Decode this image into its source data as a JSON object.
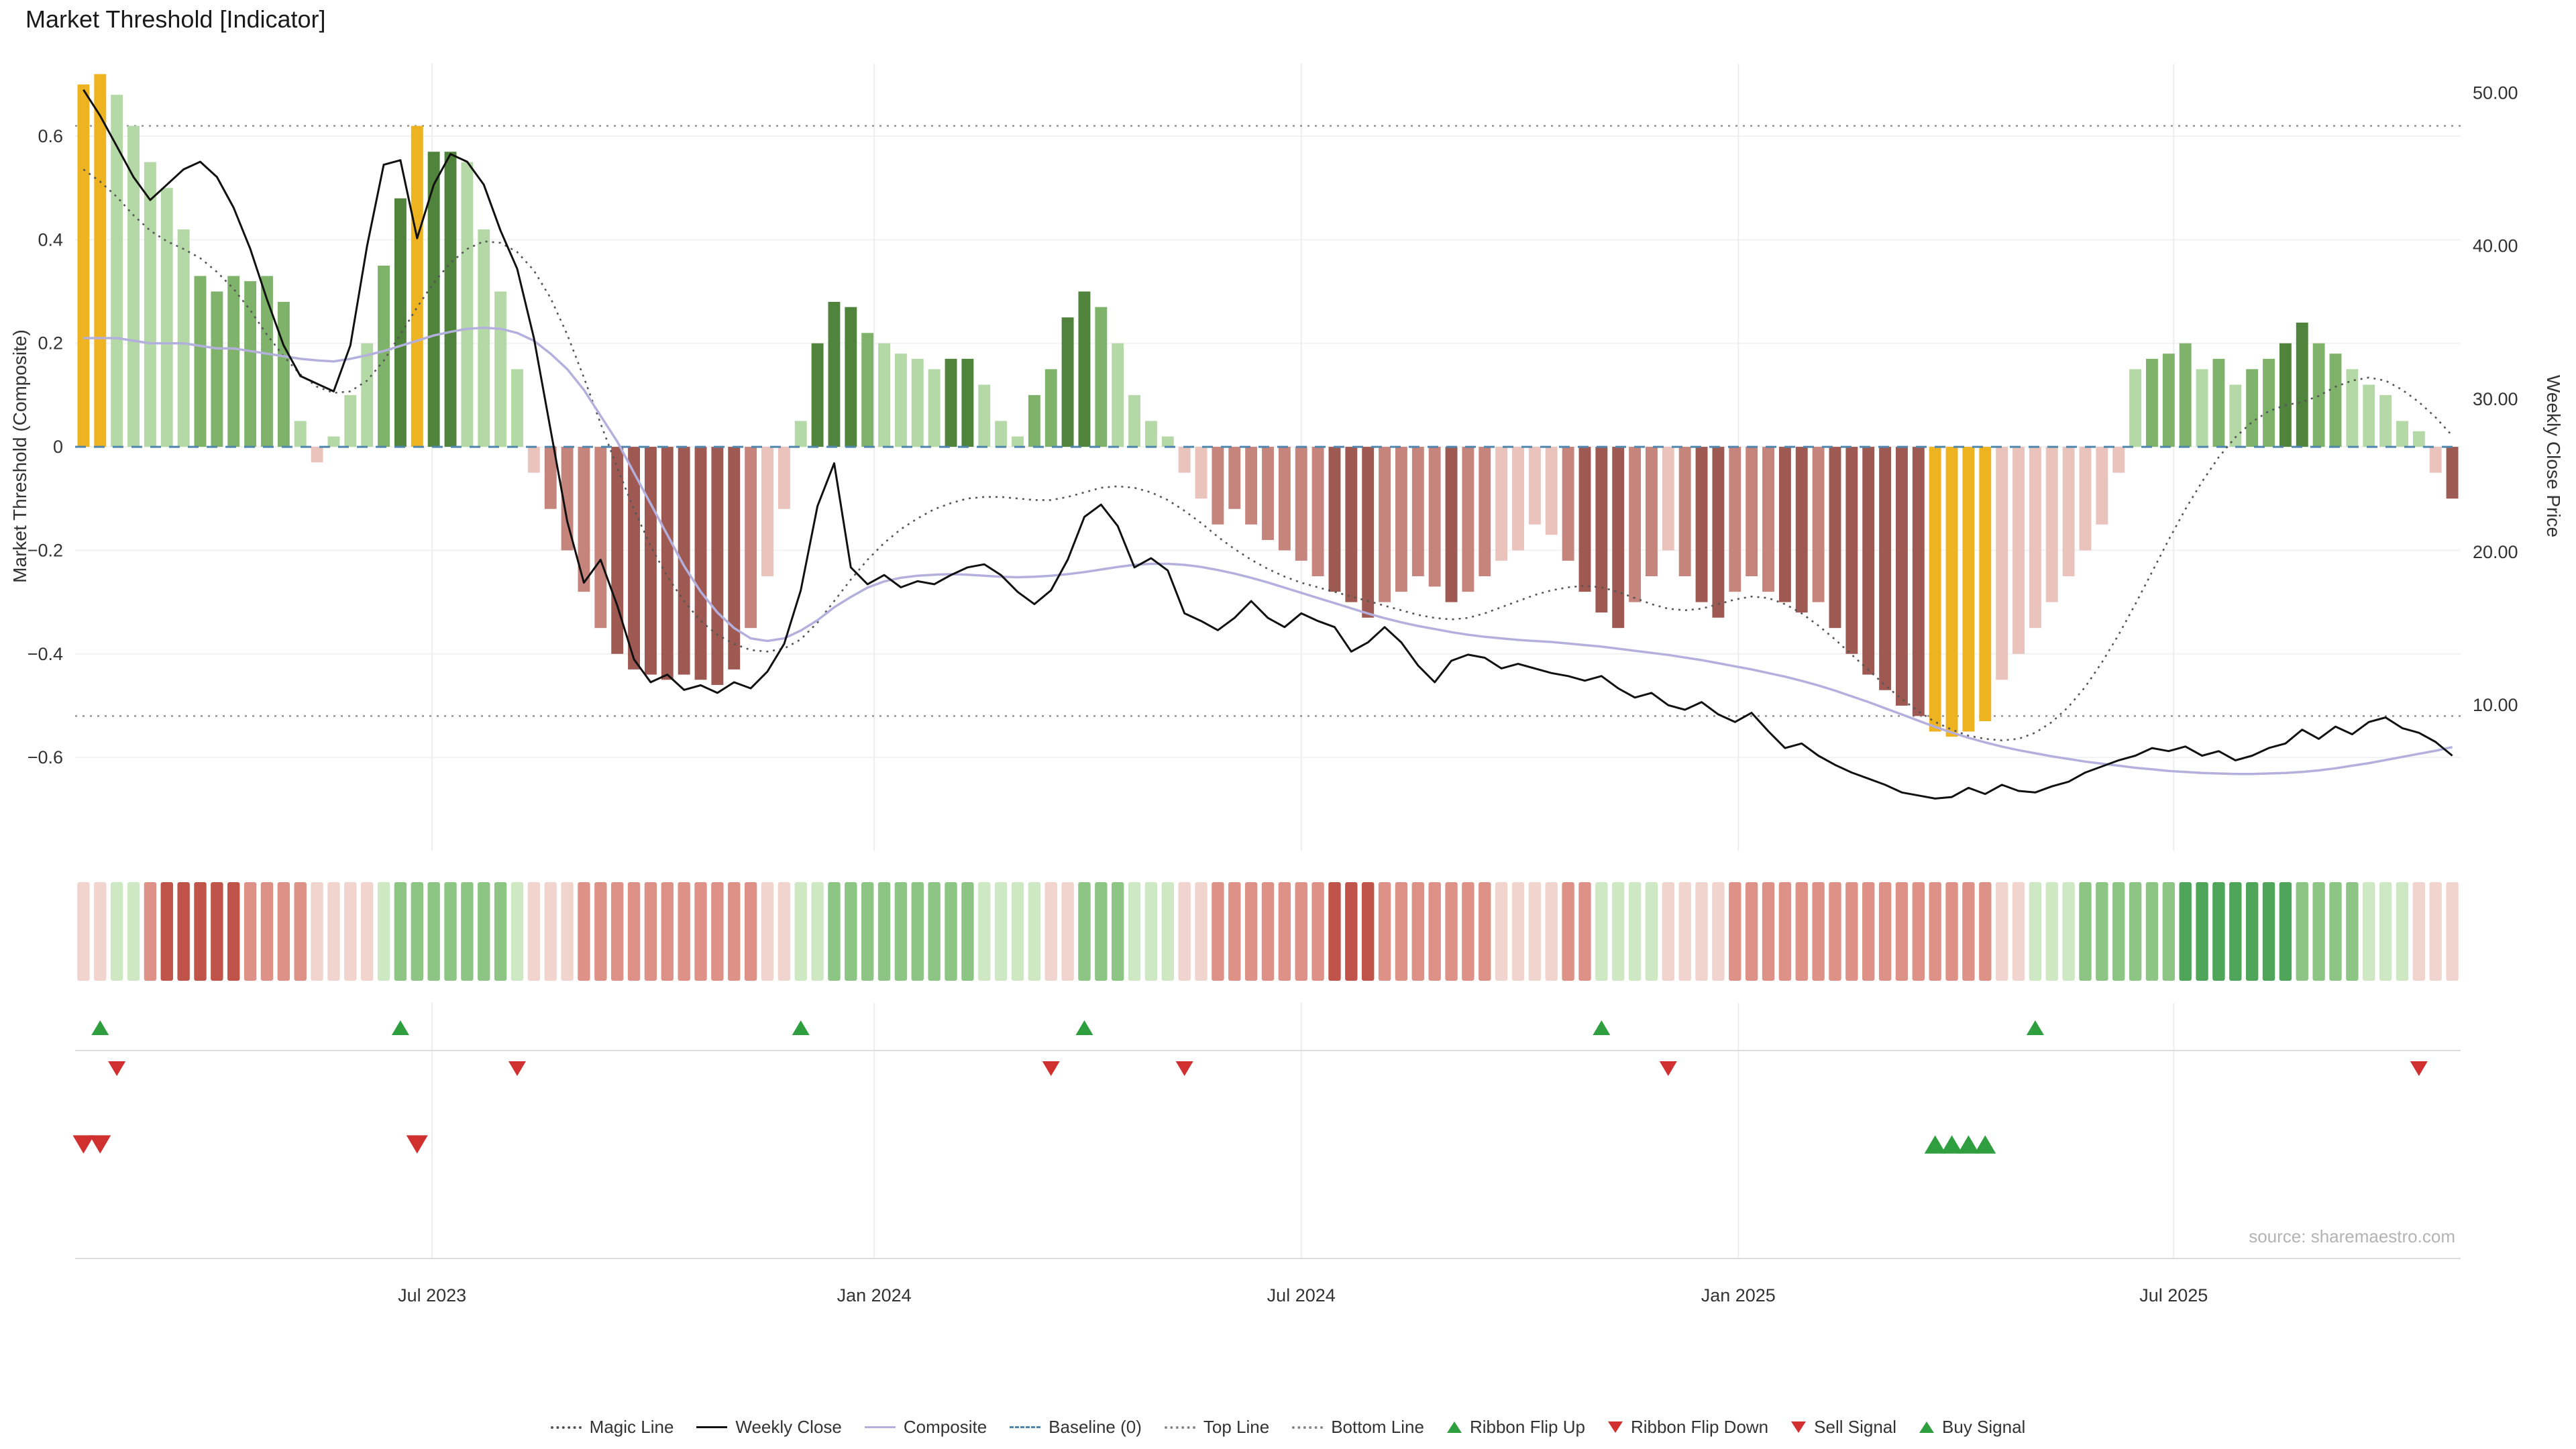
{
  "title": "Market Threshold [Indicator]",
  "source": "source: sharemaestro.com",
  "axes": {
    "left_label": "Market Threshold (Composite)",
    "right_label": "Weekly Close Price",
    "left_ticks": [
      "0.6",
      "0.4",
      "0.2",
      "0",
      "−0.2",
      "−0.4",
      "−0.6"
    ],
    "left_tick_values": [
      0.6,
      0.4,
      0.2,
      0,
      -0.2,
      -0.4,
      -0.6
    ],
    "right_ticks": [
      "50.00",
      "40.00",
      "30.00",
      "20.00",
      "10.00"
    ],
    "right_tick_values": [
      50,
      40,
      30,
      20,
      10
    ]
  },
  "colors": {
    "bar": {
      "g1": "#b5d9a6",
      "g2": "#7fb36b",
      "g3": "#50833c",
      "y": "#eeb321",
      "r1": "#eac3bd",
      "r2": "#c5857d",
      "r3": "#9e5a52"
    },
    "ribbon": {
      "g1": "#cfe8c4",
      "g2": "#8cc584",
      "g3": "#4fa55a",
      "r1": "#f2d4cf",
      "r2": "#de9287",
      "r3": "#c0544a"
    },
    "lines": {
      "weekly_close": "#111111",
      "composite": "#b4b0dd",
      "magic": "#555555",
      "baseline": "#4f86ad",
      "bounds": "#888888"
    },
    "signals": {
      "up": "#2e9e3e",
      "down": "#d03030"
    }
  },
  "chart_data": {
    "type": "bar+line",
    "title": "Market Threshold [Indicator]",
    "weeks": 143,
    "left_ylim": [
      -0.78,
      0.74
    ],
    "right_ylim": [
      0.5,
      51.9
    ],
    "top_line": 0.62,
    "bottom_line": -0.52,
    "baseline": 0,
    "x_ticks": [
      {
        "label": "Jul 2023",
        "week": 20.9
      },
      {
        "label": "Jan 2024",
        "week": 47.4
      },
      {
        "label": "Jul 2024",
        "week": 73.0
      },
      {
        "label": "Jan 2025",
        "week": 99.2
      },
      {
        "label": "Jul 2025",
        "week": 125.3
      }
    ],
    "bars": {
      "values": [
        0.7,
        0.72,
        0.68,
        0.62,
        0.55,
        0.5,
        0.42,
        0.33,
        0.3,
        0.33,
        0.32,
        0.33,
        0.28,
        0.05,
        -0.03,
        0.02,
        0.1,
        0.2,
        0.35,
        0.48,
        0.62,
        0.57,
        0.57,
        0.55,
        0.42,
        0.3,
        0.15,
        -0.05,
        -0.12,
        -0.2,
        -0.28,
        -0.35,
        -0.4,
        -0.43,
        -0.44,
        -0.45,
        -0.44,
        -0.45,
        -0.46,
        -0.43,
        -0.35,
        -0.25,
        -0.12,
        0.05,
        0.2,
        0.28,
        0.27,
        0.22,
        0.2,
        0.18,
        0.17,
        0.15,
        0.17,
        0.17,
        0.12,
        0.05,
        0.02,
        0.1,
        0.15,
        0.25,
        0.3,
        0.27,
        0.2,
        0.1,
        0.05,
        0.02,
        -0.05,
        -0.1,
        -0.15,
        -0.12,
        -0.15,
        -0.18,
        -0.2,
        -0.22,
        -0.25,
        -0.28,
        -0.3,
        -0.33,
        -0.3,
        -0.28,
        -0.25,
        -0.27,
        -0.3,
        -0.28,
        -0.25,
        -0.22,
        -0.2,
        -0.15,
        -0.17,
        -0.22,
        -0.28,
        -0.32,
        -0.35,
        -0.3,
        -0.25,
        -0.2,
        -0.25,
        -0.3,
        -0.33,
        -0.28,
        -0.25,
        -0.28,
        -0.3,
        -0.32,
        -0.3,
        -0.35,
        -0.4,
        -0.44,
        -0.47,
        -0.5,
        -0.52,
        -0.55,
        -0.56,
        -0.55,
        -0.53,
        -0.45,
        -0.4,
        -0.35,
        -0.3,
        -0.25,
        -0.2,
        -0.15,
        -0.05,
        0.15,
        0.17,
        0.18,
        0.2,
        0.15,
        0.17,
        0.12,
        0.15,
        0.17,
        0.2,
        0.24,
        0.2,
        0.18,
        0.15,
        0.12,
        0.1,
        0.05,
        0.03,
        -0.05,
        -0.1
      ],
      "colors": [
        "y",
        "y",
        "g1",
        "g1",
        "g1",
        "g1",
        "g1",
        "g2",
        "g2",
        "g2",
        "g2",
        "g2",
        "g2",
        "g1",
        "r1",
        "g1",
        "g1",
        "g1",
        "g2",
        "g3",
        "y",
        "g3",
        "g3",
        "g1",
        "g1",
        "g1",
        "g1",
        "r1",
        "r2",
        "r2",
        "r2",
        "r2",
        "r3",
        "r3",
        "r3",
        "r3",
        "r3",
        "r3",
        "r3",
        "r3",
        "r2",
        "r1",
        "r1",
        "g1",
        "g3",
        "g3",
        "g3",
        "g2",
        "g1",
        "g1",
        "g1",
        "g1",
        "g3",
        "g3",
        "g1",
        "g1",
        "g1",
        "g2",
        "g2",
        "g3",
        "g3",
        "g2",
        "g1",
        "g1",
        "g1",
        "g1",
        "r1",
        "r1",
        "r2",
        "r2",
        "r2",
        "r2",
        "r2",
        "r2",
        "r2",
        "r3",
        "r3",
        "r3",
        "r2",
        "r2",
        "r2",
        "r2",
        "r3",
        "r2",
        "r2",
        "r1",
        "r1",
        "r1",
        "r1",
        "r2",
        "r3",
        "r3",
        "r3",
        "r2",
        "r2",
        "r1",
        "r2",
        "r3",
        "r3",
        "r2",
        "r2",
        "r2",
        "r3",
        "r3",
        "r2",
        "r3",
        "r3",
        "r3",
        "r3",
        "r3",
        "r3",
        "y",
        "y",
        "y",
        "y",
        "r1",
        "r1",
        "r1",
        "r1",
        "r1",
        "r1",
        "r1",
        "r1",
        "g1",
        "g2",
        "g2",
        "g2",
        "g1",
        "g2",
        "g1",
        "g2",
        "g2",
        "g3",
        "g3",
        "g2",
        "g2",
        "g1",
        "g1",
        "g1",
        "g1",
        "g1",
        "r1",
        "r3"
      ]
    },
    "weekly_close": [
      50.2,
      48.5,
      46.5,
      44.5,
      43.0,
      44.0,
      45.0,
      45.5,
      44.5,
      42.5,
      39.8,
      36.5,
      33.5,
      31.5,
      31.0,
      30.5,
      33.5,
      40.0,
      45.3,
      45.6,
      40.5,
      44.0,
      46.0,
      45.5,
      44.0,
      41.0,
      38.5,
      34.0,
      28.0,
      22.0,
      18.0,
      19.5,
      16.5,
      13.0,
      11.5,
      12.0,
      11.0,
      11.3,
      10.8,
      11.5,
      11.1,
      12.2,
      14.0,
      17.5,
      23.0,
      25.8,
      19.0,
      17.9,
      18.5,
      17.7,
      18.1,
      17.9,
      18.5,
      19.0,
      19.2,
      18.5,
      17.4,
      16.6,
      17.5,
      19.5,
      22.3,
      23.1,
      21.7,
      19.0,
      19.6,
      18.8,
      16.0,
      15.5,
      14.9,
      15.7,
      16.8,
      15.7,
      15.1,
      16.0,
      15.5,
      15.1,
      13.5,
      14.1,
      15.1,
      14.1,
      12.6,
      11.5,
      12.9,
      13.3,
      13.1,
      12.4,
      12.7,
      12.4,
      12.1,
      11.9,
      11.6,
      11.9,
      11.1,
      10.5,
      10.8,
      10.0,
      9.7,
      10.2,
      9.4,
      8.9,
      9.5,
      8.3,
      7.2,
      7.5,
      6.7,
      6.1,
      5.6,
      5.2,
      4.8,
      4.3,
      4.1,
      3.9,
      4.0,
      4.6,
      4.2,
      4.8,
      4.4,
      4.3,
      4.7,
      5.0,
      5.6,
      6.0,
      6.4,
      6.7,
      7.2,
      7.0,
      7.3,
      6.7,
      7.0,
      6.4,
      6.7,
      7.2,
      7.5,
      8.4,
      7.8,
      8.6,
      8.1,
      8.9,
      9.2,
      8.5,
      8.2,
      7.6,
      6.7
    ],
    "magic_line": [
      45.0,
      44.2,
      43.2,
      42.0,
      41.0,
      40.3,
      39.8,
      39.2,
      38.3,
      37.2,
      35.8,
      34.2,
      32.8,
      31.6,
      30.8,
      30.4,
      30.5,
      31.2,
      32.5,
      34.2,
      36.0,
      37.6,
      38.9,
      39.8,
      40.3,
      40.2,
      39.6,
      38.4,
      36.6,
      34.2,
      31.4,
      28.4,
      25.5,
      22.8,
      20.4,
      18.4,
      16.8,
      15.5,
      14.6,
      14.0,
      13.6,
      13.5,
      13.7,
      14.3,
      15.4,
      16.8,
      18.2,
      19.5,
      20.6,
      21.5,
      22.2,
      22.8,
      23.2,
      23.5,
      23.6,
      23.6,
      23.5,
      23.4,
      23.4,
      23.6,
      23.9,
      24.2,
      24.3,
      24.2,
      23.9,
      23.4,
      22.7,
      21.9,
      21.0,
      20.2,
      19.5,
      18.9,
      18.4,
      18.0,
      17.7,
      17.4,
      17.1,
      16.8,
      16.5,
      16.2,
      15.9,
      15.7,
      15.6,
      15.7,
      16.0,
      16.4,
      16.8,
      17.2,
      17.5,
      17.7,
      17.8,
      17.7,
      17.4,
      17.0,
      16.6,
      16.3,
      16.2,
      16.3,
      16.6,
      16.9,
      17.1,
      17.0,
      16.6,
      16.0,
      15.2,
      14.3,
      13.3,
      12.3,
      11.3,
      10.4,
      9.6,
      8.9,
      8.4,
      8.0,
      7.8,
      7.7,
      7.8,
      8.2,
      8.9,
      9.9,
      11.2,
      12.8,
      14.6,
      16.6,
      18.7,
      20.8,
      22.8,
      24.6,
      26.2,
      27.5,
      28.5,
      29.2,
      29.6,
      29.8,
      30.2,
      30.8,
      31.2,
      31.4,
      31.2,
      30.6,
      29.8,
      28.8,
      27.6
    ],
    "composite_line": [
      0.21,
      0.21,
      0.21,
      0.205,
      0.2,
      0.2,
      0.2,
      0.195,
      0.19,
      0.19,
      0.185,
      0.18,
      0.175,
      0.17,
      0.167,
      0.165,
      0.17,
      0.177,
      0.185,
      0.195,
      0.205,
      0.215,
      0.222,
      0.228,
      0.23,
      0.228,
      0.22,
      0.205,
      0.18,
      0.15,
      0.11,
      0.06,
      0.01,
      -0.05,
      -0.11,
      -0.17,
      -0.23,
      -0.28,
      -0.32,
      -0.35,
      -0.37,
      -0.375,
      -0.37,
      -0.355,
      -0.335,
      -0.31,
      -0.29,
      -0.272,
      -0.26,
      -0.253,
      -0.249,
      -0.247,
      -0.246,
      -0.247,
      -0.249,
      -0.251,
      -0.252,
      -0.251,
      -0.249,
      -0.246,
      -0.242,
      -0.237,
      -0.232,
      -0.228,
      -0.226,
      -0.226,
      -0.228,
      -0.232,
      -0.238,
      -0.245,
      -0.253,
      -0.262,
      -0.272,
      -0.282,
      -0.292,
      -0.302,
      -0.312,
      -0.322,
      -0.331,
      -0.339,
      -0.346,
      -0.352,
      -0.358,
      -0.363,
      -0.367,
      -0.37,
      -0.373,
      -0.375,
      -0.377,
      -0.38,
      -0.383,
      -0.386,
      -0.39,
      -0.394,
      -0.398,
      -0.402,
      -0.407,
      -0.412,
      -0.418,
      -0.424,
      -0.43,
      -0.437,
      -0.444,
      -0.452,
      -0.461,
      -0.471,
      -0.482,
      -0.493,
      -0.505,
      -0.517,
      -0.529,
      -0.541,
      -0.552,
      -0.562,
      -0.571,
      -0.579,
      -0.586,
      -0.592,
      -0.598,
      -0.603,
      -0.608,
      -0.612,
      -0.616,
      -0.62,
      -0.623,
      -0.626,
      -0.628,
      -0.63,
      -0.631,
      -0.632,
      -0.632,
      -0.631,
      -0.63,
      -0.628,
      -0.625,
      -0.621,
      -0.616,
      -0.611,
      -0.605,
      -0.599,
      -0.593,
      -0.587,
      -0.58
    ],
    "ribbon": [
      "r1",
      "r1",
      "g1",
      "g1",
      "r2",
      "r3",
      "r3",
      "r3",
      "r3",
      "r3",
      "r2",
      "r2",
      "r2",
      "r2",
      "r1",
      "r1",
      "r1",
      "r1",
      "g1",
      "g2",
      "g2",
      "g2",
      "g2",
      "g2",
      "g2",
      "g2",
      "g1",
      "r1",
      "r1",
      "r1",
      "r2",
      "r2",
      "r2",
      "r2",
      "r2",
      "r2",
      "r2",
      "r2",
      "r2",
      "r2",
      "r2",
      "r1",
      "r1",
      "g1",
      "g1",
      "g2",
      "g2",
      "g2",
      "g2",
      "g2",
      "g2",
      "g2",
      "g2",
      "g2",
      "g1",
      "g1",
      "g1",
      "g1",
      "r1",
      "r1",
      "g2",
      "g2",
      "g2",
      "g1",
      "g1",
      "g1",
      "r1",
      "r1",
      "r2",
      "r2",
      "r2",
      "r2",
      "r2",
      "r2",
      "r2",
      "r3",
      "r3",
      "r3",
      "r2",
      "r2",
      "r2",
      "r2",
      "r2",
      "r2",
      "r2",
      "r1",
      "r1",
      "r1",
      "r1",
      "r2",
      "r2",
      "g1",
      "g1",
      "g1",
      "g1",
      "r1",
      "r1",
      "r1",
      "r1",
      "r2",
      "r2",
      "r2",
      "r2",
      "r2",
      "r2",
      "r2",
      "r2",
      "r2",
      "r2",
      "r2",
      "r2",
      "r2",
      "r2",
      "r2",
      "r2",
      "r1",
      "r1",
      "g1",
      "g1",
      "g1",
      "g2",
      "g2",
      "g2",
      "g2",
      "g2",
      "g2",
      "g3",
      "g3",
      "g3",
      "g3",
      "g3",
      "g3",
      "g3",
      "g2",
      "g2",
      "g2",
      "g2",
      "g1",
      "g1",
      "g1",
      "r1",
      "r1",
      "r1"
    ],
    "signals": {
      "ribbon_flip_up_weeks": [
        2,
        20,
        44,
        61,
        92,
        118
      ],
      "ribbon_flip_down_weeks": [
        3,
        27,
        59,
        67,
        96,
        141
      ],
      "sell_weeks": [
        1,
        2,
        21
      ],
      "buy_weeks": [
        112,
        113,
        114,
        115
      ]
    }
  },
  "legend": {
    "items": [
      {
        "label": "Magic Line",
        "type": "line",
        "style": "dotted",
        "color": "#555555"
      },
      {
        "label": "Weekly Close",
        "type": "line",
        "style": "solid",
        "color": "#111111"
      },
      {
        "label": "Composite",
        "type": "line",
        "style": "solid",
        "color": "#b4b0dd"
      },
      {
        "label": "Baseline (0)",
        "type": "line",
        "style": "dashed",
        "color": "#4f86ad"
      },
      {
        "label": "Top Line",
        "type": "line",
        "style": "dotted",
        "color": "#888888"
      },
      {
        "label": "Bottom Line",
        "type": "line",
        "style": "dotted",
        "color": "#888888"
      },
      {
        "label": "Ribbon Flip Up",
        "type": "marker",
        "shape": "triangle-up",
        "color": "#2e9e3e"
      },
      {
        "label": "Ribbon Flip Down",
        "type": "marker",
        "shape": "triangle-down",
        "color": "#d03030"
      },
      {
        "label": "Sell Signal",
        "type": "marker",
        "shape": "triangle-down",
        "color": "#d03030"
      },
      {
        "label": "Buy Signal",
        "type": "marker",
        "shape": "triangle-up",
        "color": "#2e9e3e"
      }
    ]
  }
}
